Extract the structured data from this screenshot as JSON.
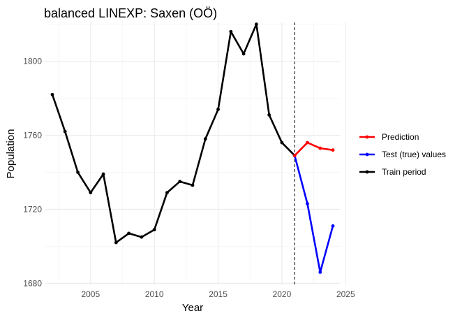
{
  "chart_data": {
    "type": "line",
    "title": "balanced LINEXP: Saxen (OÖ)",
    "xlabel": "Year",
    "ylabel": "Population",
    "xlim": [
      2001.4,
      2024.6
    ],
    "ylim": [
      1679,
      1821
    ],
    "x_ticks": [
      2005,
      2010,
      2015,
      2020,
      2025
    ],
    "y_ticks": [
      1680,
      1720,
      1760,
      1800
    ],
    "grid": true,
    "legend_position": "right",
    "vline_x": 2021,
    "series": [
      {
        "name": "Prediction",
        "color": "#ff0000",
        "x": [
          2021,
          2022,
          2023,
          2024
        ],
        "values": [
          1749,
          1756,
          1753,
          1752
        ]
      },
      {
        "name": "Test (true) values",
        "color": "#0000ff",
        "x": [
          2021,
          2022,
          2023,
          2024
        ],
        "values": [
          1749,
          1723,
          1686,
          1711
        ]
      },
      {
        "name": "Train period",
        "color": "#000000",
        "x": [
          2002,
          2003,
          2004,
          2005,
          2006,
          2007,
          2008,
          2009,
          2010,
          2011,
          2012,
          2013,
          2014,
          2015,
          2016,
          2017,
          2018,
          2019,
          2020,
          2021
        ],
        "values": [
          1782,
          1762,
          1740,
          1729,
          1739,
          1702,
          1707,
          1705,
          1709,
          1729,
          1735,
          1733,
          1758,
          1774,
          1816,
          1804,
          1820,
          1771,
          1756,
          1749
        ]
      }
    ]
  }
}
